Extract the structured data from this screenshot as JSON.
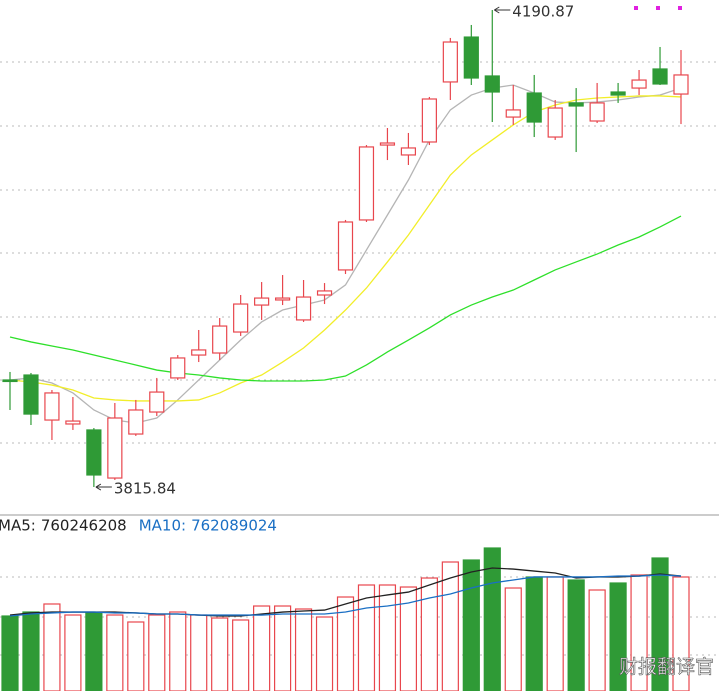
{
  "chart_data": [
    {
      "type": "candlestick",
      "ylim": [
        3793.84,
        4198.73
      ],
      "up_color": "#e8464d",
      "down_color": "#2f9a36",
      "open": [
        3900.0,
        3903.9,
        3868.5,
        3865.4,
        3860.7,
        3822.9,
        3857.5,
        3874.8,
        3901.6,
        3919.6,
        3921.2,
        3937.7,
        3958.9,
        3962.9,
        3947.2,
        3966.8,
        3986.5,
        4025.8,
        4084.7,
        4076.9,
        4087.1,
        4134.3,
        4169.6,
        4139.0,
        4106.7,
        4125.6,
        4091.0,
        4117.8,
        4103.6,
        4126.4,
        4129.5,
        4144.5,
        4124.8
      ],
      "high": [
        3906.3,
        3905.5,
        3892.1,
        3886.6,
        3862.2,
        3881.9,
        3884.3,
        3901.6,
        3919.6,
        3939.3,
        3948.7,
        3966.8,
        3977.0,
        3982.5,
        3978.6,
        3976.2,
        4025.8,
        4084.7,
        4098.1,
        4094.2,
        4122.5,
        4168.9,
        4179.1,
        4190.87,
        4131.9,
        4139.8,
        4120.1,
        4129.5,
        4133.5,
        4133.5,
        4143.7,
        4161.8,
        4159.4
      ],
      "low": [
        3876.4,
        3864.6,
        3852.8,
        3860.7,
        3815.84,
        3821.4,
        3856.0,
        3871.7,
        3900.0,
        3914.1,
        3915.7,
        3934.6,
        3947.2,
        3958.9,
        3945.6,
        3959.7,
        3983.3,
        4024.2,
        4072.9,
        4069.0,
        4084.7,
        4120.1,
        4131.9,
        4102.8,
        4100.5,
        4091.0,
        4088.7,
        4079.2,
        4102.0,
        4117.8,
        4124.0,
        4131.9,
        4101.2
      ],
      "close": [
        3899.2,
        3873.2,
        3889.8,
        3867.7,
        3825.3,
        3870.1,
        3876.4,
        3890.5,
        3917.3,
        3923.6,
        3942.4,
        3959.7,
        3964.4,
        3964.4,
        3965.2,
        3970.0,
        4024.2,
        4083.2,
        4086.3,
        4082.4,
        4120.9,
        4165.7,
        4137.4,
        4126.4,
        4112.3,
        4102.8,
        4113.8,
        4115.4,
        4117.8,
        4124.0,
        4135.8,
        4132.7,
        4139.8
      ],
      "lines": [
        {
          "color": "#b5b5b5",
          "values": [
            3900.0,
            3901.6,
            3897.6,
            3889.8,
            3876.4,
            3868.5,
            3866.2,
            3870.1,
            3884.3,
            3900.0,
            3915.7,
            3931.4,
            3945.6,
            3955.0,
            3958.9,
            3962.9,
            3974.7,
            4002.2,
            4029.7,
            4057.2,
            4088.7,
            4112.3,
            4124.0,
            4129.5,
            4131.9,
            4125.6,
            4118.5,
            4117.8,
            4118.5,
            4120.1,
            4122.5,
            4124.0,
            4129.5
          ]
        },
        {
          "color": "#f2ee2a",
          "values": [
            3900.0,
            3898.4,
            3896.0,
            3892.1,
            3885.8,
            3884.3,
            3883.5,
            3883.5,
            3883.5,
            3884.3,
            3889.8,
            3897.6,
            3903.9,
            3914.1,
            3925.1,
            3939.3,
            3955.0,
            3972.3,
            3992.8,
            4014.0,
            4037.6,
            4061.1,
            4076.9,
            4088.7,
            4100.5,
            4110.7,
            4116.2,
            4120.1,
            4121.7,
            4122.5,
            4123.3,
            4123.3,
            4122.5
          ]
        },
        {
          "color": "#2ee02a",
          "values": [
            3933.8,
            3929.9,
            3926.7,
            3923.6,
            3919.6,
            3915.7,
            3911.8,
            3907.8,
            3905.5,
            3903.9,
            3901.6,
            3900.0,
            3899.2,
            3899.2,
            3899.2,
            3900.0,
            3903.1,
            3911.8,
            3922.0,
            3931.4,
            3940.9,
            3951.1,
            3958.9,
            3965.2,
            3970.7,
            3978.6,
            3986.5,
            3992.8,
            3999.0,
            4006.1,
            4012.4,
            4020.3,
            4028.9
          ]
        }
      ]
    },
    {
      "type": "bar",
      "ylim": [
        0,
        1130500000
      ],
      "values": [
        495800000,
        522300000,
        575200000,
        502400000,
        515700000,
        502400000,
        456200000,
        502400000,
        522300000,
        502400000,
        482600000,
        469400000,
        561900000,
        561900000,
        542100000,
        489200000,
        621400000,
        700800000,
        700800000,
        687500000,
        747000000,
        852800000,
        866000000,
        945400000,
        680900000,
        753700000,
        753700000,
        733800000,
        667700000,
        714000000,
        766900000,
        879300000,
        753700000
      ],
      "lines": [
        {
          "name": "MA5:",
          "value": 760246208,
          "color": "#222222",
          "values": [
            502000000,
            516000000,
            522000000,
            522000000,
            522000000,
            522000000,
            516000000,
            509000000,
            509000000,
            502000000,
            496000000,
            496000000,
            509000000,
            522000000,
            529000000,
            535000000,
            575000000,
            615000000,
            635000000,
            654000000,
            701000000,
            747000000,
            787000000,
            813000000,
            806000000,
            793000000,
            780000000,
            747000000,
            754000000,
            754000000,
            760000000,
            773000000,
            760000000
          ]
        },
        {
          "name": "MA10:",
          "value": 762089024,
          "color": "#1a6fc4",
          "values": [
            496000000,
            509000000,
            516000000,
            522000000,
            522000000,
            516000000,
            516000000,
            509000000,
            509000000,
            502000000,
            502000000,
            502000000,
            502000000,
            509000000,
            509000000,
            509000000,
            522000000,
            549000000,
            562000000,
            582000000,
            615000000,
            641000000,
            681000000,
            714000000,
            734000000,
            754000000,
            754000000,
            754000000,
            754000000,
            760000000,
            760000000,
            767000000,
            760000000
          ]
        }
      ]
    }
  ],
  "watermark": "财报翻译官"
}
